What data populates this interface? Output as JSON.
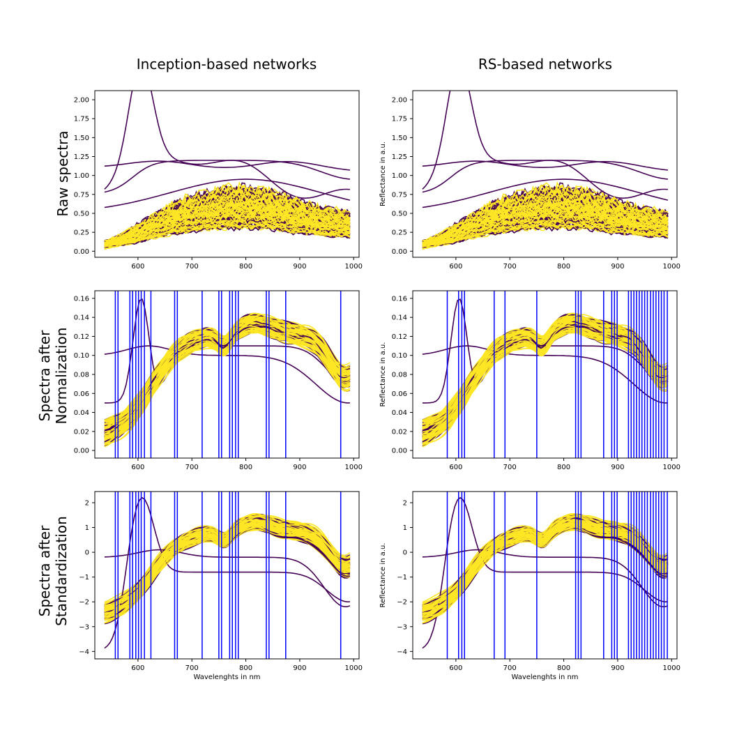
{
  "figure": {
    "col_titles": [
      "Inception-based networks",
      "RS-based networks"
    ],
    "row_titles": [
      [
        "Raw spectra"
      ],
      [
        "Spectra after",
        "Normalization"
      ],
      [
        "Spectra after",
        "Standardization"
      ]
    ],
    "ylabel": "Reflectance in a.u.",
    "xlabel": "Wavelenghts in nm"
  },
  "colors": {
    "class_a": "#440154",
    "class_b": "#fde725",
    "band": "#0000ff"
  },
  "chart_data": [
    {
      "type": "line",
      "panel": "raw-inception",
      "xlim": [
        520,
        1010
      ],
      "ylim": [
        -0.08,
        2.12
      ],
      "yticks": [
        0.0,
        0.25,
        0.5,
        0.75,
        1.0,
        1.25,
        1.5,
        1.75,
        2.0
      ],
      "xticks": [
        600,
        700,
        800,
        900,
        1000
      ],
      "ytick_labels": [
        "0.00",
        "0.25",
        "0.50",
        "0.75",
        "1.00",
        "1.25",
        "1.50",
        "1.75",
        "2.00"
      ],
      "xtick_labels": [
        "600",
        "700",
        "800",
        "900",
        "1000"
      ],
      "bands": []
    },
    {
      "type": "line",
      "panel": "raw-rs",
      "xlim": [
        520,
        1010
      ],
      "ylim": [
        -0.08,
        2.12
      ],
      "yticks": [
        0.0,
        0.25,
        0.5,
        0.75,
        1.0,
        1.25,
        1.5,
        1.75,
        2.0
      ],
      "xticks": [
        600,
        700,
        800,
        900,
        1000
      ],
      "ytick_labels": [
        "0.00",
        "0.25",
        "0.50",
        "0.75",
        "1.00",
        "1.25",
        "1.50",
        "1.75",
        "2.00"
      ],
      "xtick_labels": [
        "600",
        "700",
        "800",
        "900",
        "1000"
      ],
      "bands": []
    },
    {
      "type": "line",
      "panel": "norm-inception",
      "xlim": [
        520,
        1010
      ],
      "ylim": [
        -0.008,
        0.168
      ],
      "yticks": [
        0.0,
        0.02,
        0.04,
        0.06,
        0.08,
        0.1,
        0.12,
        0.14,
        0.16
      ],
      "xticks": [
        600,
        700,
        800,
        900,
        1000
      ],
      "ytick_labels": [
        "0.00",
        "0.02",
        "0.04",
        "0.06",
        "0.08",
        "0.10",
        "0.12",
        "0.14",
        "0.16"
      ],
      "xtick_labels": [
        "600",
        "700",
        "800",
        "900",
        "1000"
      ],
      "bands": [
        558,
        563,
        585,
        590,
        596,
        601,
        606,
        612,
        624,
        668,
        673,
        719,
        750,
        755,
        770,
        775,
        781,
        786,
        838,
        843,
        874,
        976
      ]
    },
    {
      "type": "line",
      "panel": "norm-rs",
      "xlim": [
        520,
        1010
      ],
      "ylim": [
        -0.008,
        0.168
      ],
      "yticks": [
        0.0,
        0.02,
        0.04,
        0.06,
        0.08,
        0.1,
        0.12,
        0.14,
        0.16
      ],
      "xticks": [
        600,
        700,
        800,
        900,
        1000
      ],
      "ytick_labels": [
        "0.00",
        "0.02",
        "0.04",
        "0.06",
        "0.08",
        "0.10",
        "0.12",
        "0.14",
        "0.16"
      ],
      "xtick_labels": [
        "600",
        "700",
        "800",
        "900",
        "1000"
      ],
      "bands": [
        584,
        605,
        611,
        616,
        671,
        691,
        750,
        822,
        827,
        832,
        874,
        889,
        894,
        899,
        920,
        925,
        930,
        935,
        940,
        945,
        950,
        955,
        961,
        966,
        971,
        976,
        981,
        986,
        992
      ]
    },
    {
      "type": "line",
      "panel": "std-inception",
      "xlim": [
        520,
        1010
      ],
      "ylim": [
        -4.3,
        2.45
      ],
      "yticks": [
        -4,
        -3,
        -2,
        -1,
        0,
        1,
        2
      ],
      "xticks": [
        600,
        700,
        800,
        900,
        1000
      ],
      "ytick_labels": [
        "−4",
        "−3",
        "−2",
        "−1",
        "0",
        "1",
        "2"
      ],
      "xtick_labels": [
        "600",
        "700",
        "800",
        "900",
        "1000"
      ],
      "bands": [
        558,
        563,
        585,
        590,
        596,
        601,
        606,
        612,
        624,
        668,
        673,
        719,
        750,
        755,
        770,
        775,
        781,
        786,
        838,
        843,
        874,
        976
      ]
    },
    {
      "type": "line",
      "panel": "std-rs",
      "xlim": [
        520,
        1010
      ],
      "ylim": [
        -4.3,
        2.45
      ],
      "yticks": [
        -4,
        -3,
        -2,
        -1,
        0,
        1,
        2
      ],
      "xticks": [
        600,
        700,
        800,
        900,
        1000
      ],
      "ytick_labels": [
        "−4",
        "−3",
        "−2",
        "−1",
        "0",
        "1",
        "2"
      ],
      "xtick_labels": [
        "600",
        "700",
        "800",
        "900",
        "1000"
      ],
      "bands": [
        584,
        605,
        611,
        616,
        671,
        691,
        750,
        822,
        827,
        832,
        874,
        889,
        894,
        899,
        920,
        925,
        930,
        935,
        940,
        945,
        950,
        955,
        961,
        966,
        971,
        976,
        981,
        986,
        992
      ]
    }
  ]
}
